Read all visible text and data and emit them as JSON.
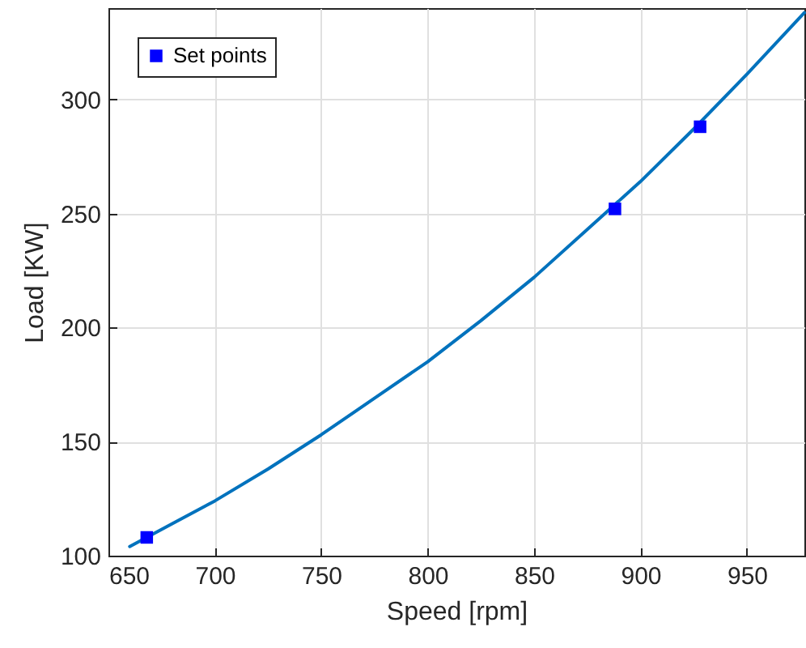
{
  "chart_data": {
    "type": "line",
    "xlabel": "Speed [rpm]",
    "ylabel": "Load [KW]",
    "xlim": [
      650,
      977
    ],
    "ylim": [
      100,
      340
    ],
    "xticks": [
      650,
      700,
      750,
      800,
      850,
      900,
      950
    ],
    "yticks": [
      100,
      150,
      200,
      250,
      300
    ],
    "grid": true,
    "legend": "top left",
    "series": [
      {
        "color": "#0072bd",
        "x": [
          660,
          680,
          700,
          725,
          750,
          775,
          800,
          825,
          850,
          875,
          900,
          925,
          950,
          977
        ],
        "values": [
          104,
          114,
          124,
          138,
          153,
          169,
          185,
          203,
          222,
          243,
          264,
          287,
          311,
          338
        ]
      },
      {
        "type": "scatter",
        "name": "Set points",
        "color": "#0000ff",
        "marker": "square",
        "x": [
          668,
          888,
          928
        ],
        "values": [
          108,
          252,
          288
        ]
      }
    ]
  }
}
